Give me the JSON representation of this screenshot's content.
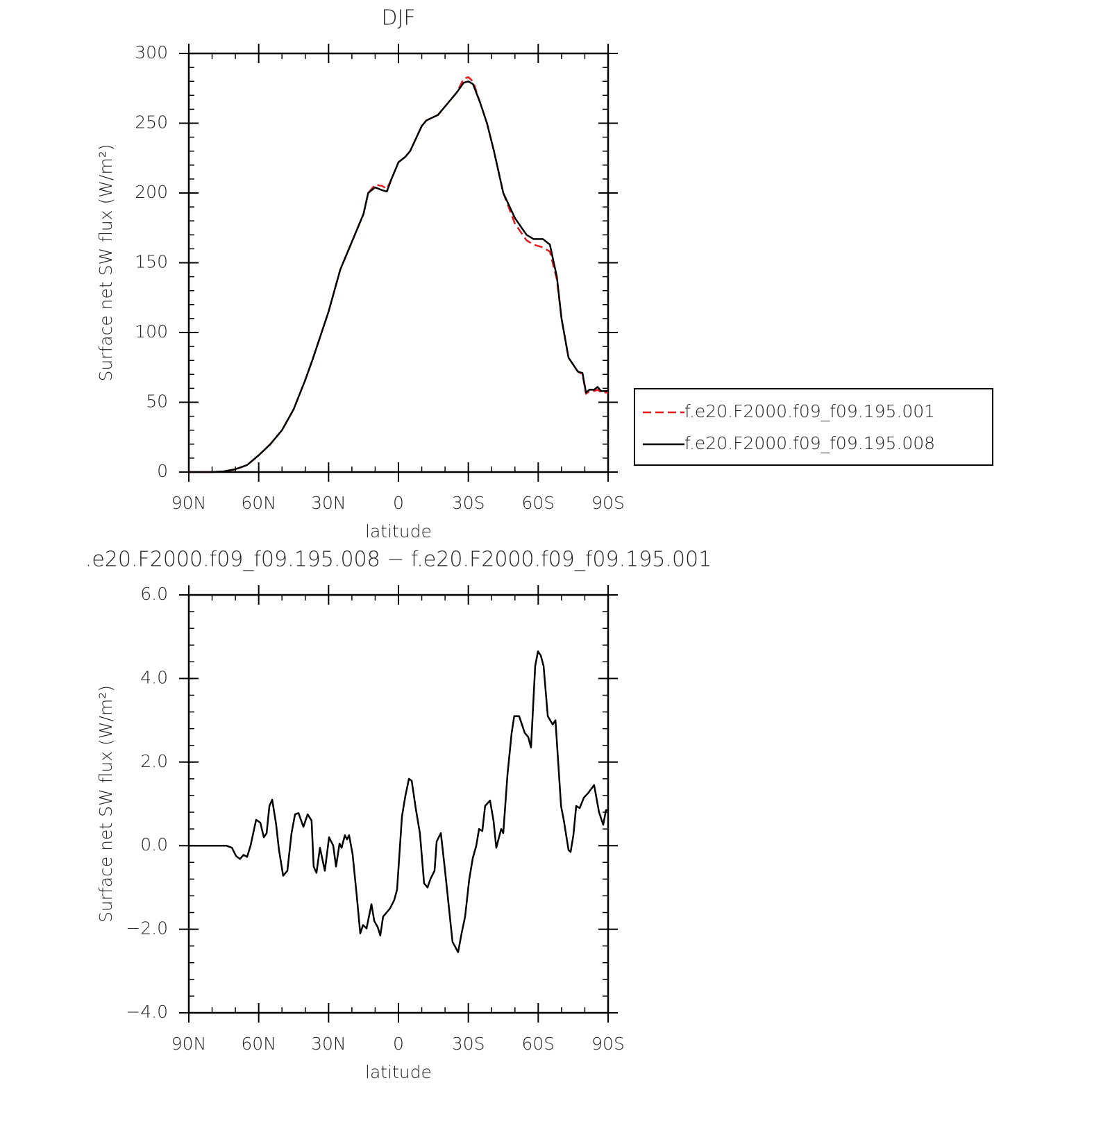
{
  "chart_data": [
    {
      "type": "line",
      "title": "DJF",
      "xlabel": "latitude",
      "ylabel": "Surface net SW flux (W/m²)",
      "x": [
        90,
        80,
        75,
        70,
        65,
        60,
        55,
        50,
        48,
        45,
        40,
        37,
        30,
        25,
        20,
        15,
        13,
        10,
        7,
        5,
        3,
        0,
        -3,
        -5,
        -10,
        -12,
        -17,
        -20,
        -25,
        -28,
        -30,
        -32,
        -35,
        -38,
        -41,
        -45,
        -50,
        -55,
        -58,
        -62,
        -65,
        -68,
        -70,
        -73,
        -75,
        -77,
        -79,
        -80.5,
        -82,
        -84,
        -85.5,
        -87,
        -90
      ],
      "series": [
        {
          "name": "f.e20.F2000.f09_f09.195.001",
          "color": "#e41a1c",
          "dash": true,
          "values": [
            0,
            0,
            0.5,
            2,
            5,
            12,
            20,
            30,
            36,
            45,
            66,
            80,
            115,
            145,
            165,
            185,
            200,
            206,
            205,
            203,
            210,
            222,
            226,
            230,
            248,
            252,
            256,
            262,
            272,
            282,
            283,
            280,
            265,
            250,
            230,
            200,
            178,
            166,
            163,
            161,
            158,
            138,
            110,
            82,
            77,
            72,
            70,
            56,
            58,
            58,
            59,
            57,
            57
          ]
        },
        {
          "name": "f.e20.F2000.f09_f09.195.008",
          "color": "#000000",
          "dash": false,
          "values": [
            0,
            0,
            0.5,
            2,
            5,
            12,
            20,
            30,
            36,
            45,
            66,
            80,
            115,
            145,
            165,
            185,
            200,
            204,
            202,
            201,
            210,
            222,
            226,
            230,
            248,
            252,
            256,
            262,
            272,
            279,
            280,
            278,
            265,
            250,
            230,
            200,
            182,
            170,
            167,
            167,
            163,
            140,
            110,
            82,
            77,
            72,
            71,
            57,
            59,
            59,
            61,
            58,
            58
          ]
        }
      ],
      "xlim": [
        90,
        -90
      ],
      "xticks": [
        {
          "value": 90,
          "label": "90N"
        },
        {
          "value": 60,
          "label": "60N"
        },
        {
          "value": 30,
          "label": "30N"
        },
        0,
        {
          "value": -30,
          "label": "30S"
        },
        {
          "value": -60,
          "label": "60S"
        },
        {
          "value": -90,
          "label": "90S"
        }
      ],
      "ylim": [
        0,
        300
      ],
      "yticks": [
        0,
        50,
        100,
        150,
        200,
        250,
        300
      ],
      "xminor_step": 10,
      "yminor_step": 10,
      "legend": "outside right"
    },
    {
      "type": "line",
      "title": ".e20.F2000.f09_f09.195.008 − f.e20.F2000.f09_f09.195.001",
      "xlabel": "latitude",
      "ylabel": "Surface net SW flux (W/m²)",
      "x": [
        90,
        73.9,
        71.5,
        69.7,
        68,
        66.5,
        65,
        63.5,
        61.1,
        59.3,
        57.8,
        56.6,
        55.4,
        54.2,
        52.5,
        51.3,
        49.5,
        47.7,
        45.9,
        44.4,
        42.9,
        40.8,
        39,
        37.3,
        36.4,
        35.2,
        33.7,
        31.6,
        29.8,
        28,
        26.8,
        25.3,
        24.4,
        23,
        22.1,
        21.2,
        19.7,
        17.9,
        16.4,
        15.2,
        13.7,
        11.6,
        10.4,
        8.9,
        7.8,
        6.6,
        3.6,
        1.8,
        0.6,
        -1.5,
        -3,
        -4.5,
        -5.7,
        -7.4,
        -9.2,
        -11,
        -12.5,
        -13.7,
        -15.5,
        -16.4,
        -18.2,
        -20,
        -23.2,
        -25.6,
        -27.1,
        -28.6,
        -30.4,
        -31.9,
        -33.4,
        -34.6,
        -36,
        -37.2,
        -39.3,
        -40.8,
        -42,
        -44.1,
        -45,
        -46.8,
        -48.6,
        -49.7,
        -51.8,
        -54.2,
        -55.7,
        -56.9,
        -58.7,
        -59.9,
        -61.1,
        -62.3,
        -64.1,
        -66.2,
        -67.4,
        -69.8,
        -71,
        -73,
        -73.9,
        -75.1,
        -76.3,
        -77.8,
        -79.6,
        -81.3,
        -84,
        -86.1,
        -87.9,
        -89.1,
        -90
      ],
      "series": [
        {
          "name": null,
          "color": "#000000",
          "dash": false,
          "values": [
            0,
            0,
            -0.05,
            -0.25,
            -0.32,
            -0.22,
            -0.27,
            0,
            0.62,
            0.55,
            0.2,
            0.3,
            0.95,
            1.1,
            0.5,
            -0.1,
            -0.72,
            -0.6,
            0.3,
            0.75,
            0.78,
            0.45,
            0.75,
            0.6,
            -0.5,
            -0.65,
            -0.05,
            -0.6,
            0.2,
            0,
            -0.5,
            0.05,
            -0.05,
            0.25,
            0.15,
            0.25,
            -0.2,
            -1.2,
            -2.1,
            -1.9,
            -1.98,
            -1.4,
            -1.8,
            -1.95,
            -2.15,
            -1.7,
            -1.5,
            -1.3,
            -1.05,
            0.7,
            1.2,
            1.6,
            1.55,
            0.9,
            0.3,
            -0.9,
            -1,
            -0.8,
            -0.6,
            0.1,
            0.3,
            -0.6,
            -2.3,
            -2.55,
            -2.1,
            -1.7,
            -0.8,
            -0.3,
            0,
            0.4,
            0.35,
            0.95,
            1.08,
            0.6,
            -0.05,
            0.4,
            0.3,
            1.7,
            2.7,
            3.1,
            3.1,
            2.7,
            2.6,
            2.35,
            4.3,
            4.65,
            4.55,
            4.3,
            3.1,
            2.9,
            3,
            0.95,
            0.6,
            -0.1,
            -0.15,
            0.25,
            0.95,
            0.9,
            1.15,
            1.25,
            1.45,
            0.8,
            0.5,
            0.85,
            0.85
          ]
        }
      ],
      "xlim": [
        90,
        -90
      ],
      "xticks": [
        {
          "value": 90,
          "label": "90N"
        },
        {
          "value": 60,
          "label": "60N"
        },
        {
          "value": 30,
          "label": "30N"
        },
        0,
        {
          "value": -30,
          "label": "30S"
        },
        {
          "value": -60,
          "label": "60S"
        },
        {
          "value": -90,
          "label": "90S"
        }
      ],
      "ylim": [
        -4,
        6
      ],
      "yticks": [
        {
          "value": -4,
          "label": "−4.0"
        },
        {
          "value": -2,
          "label": "−2.0"
        },
        {
          "value": 0,
          "label": "0.0"
        },
        {
          "value": 2,
          "label": "2.0"
        },
        {
          "value": 4,
          "label": "4.0"
        },
        {
          "value": 6,
          "label": "6.0"
        }
      ],
      "xminor_step": 10,
      "yminor_step": 0.4
    }
  ]
}
